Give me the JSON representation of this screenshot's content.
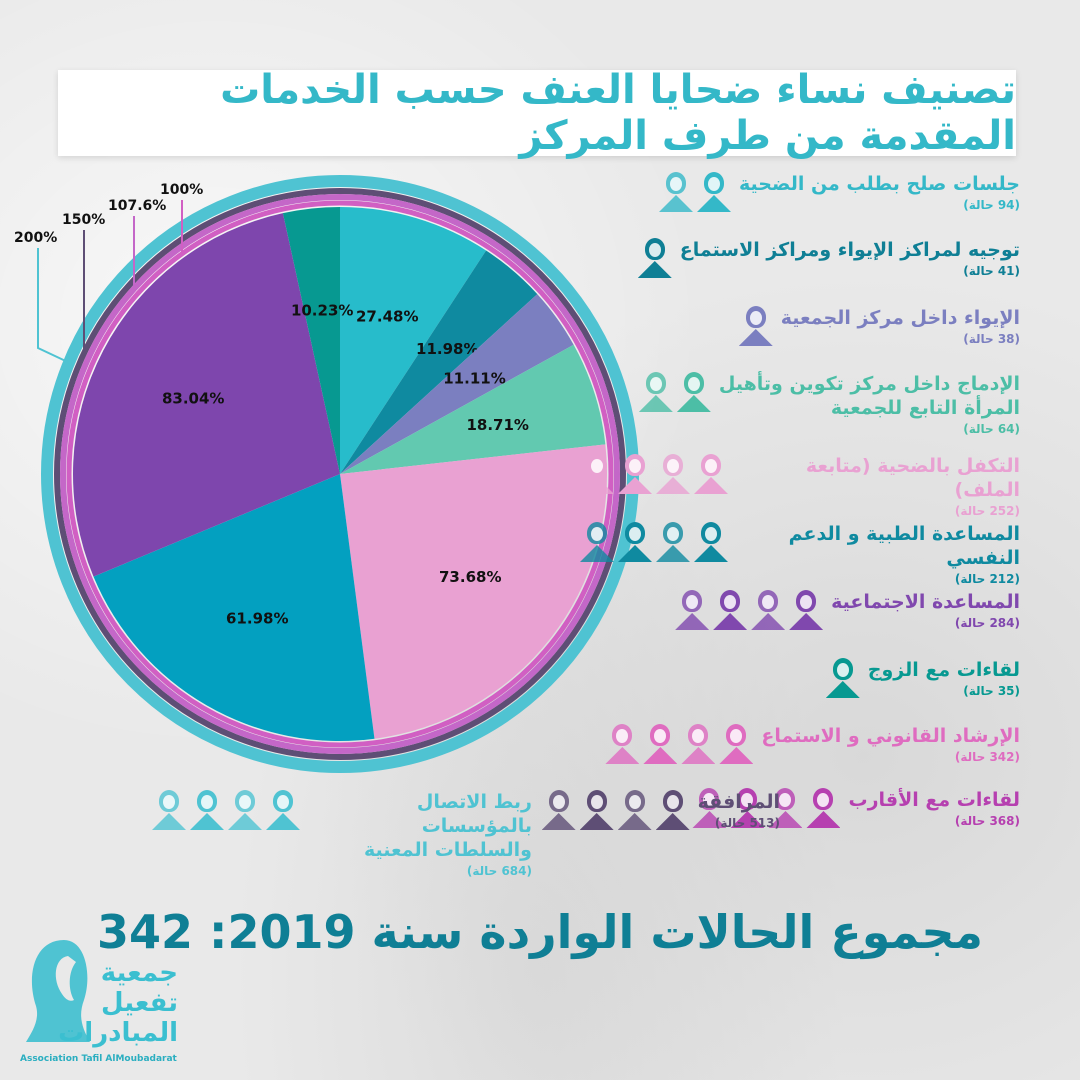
{
  "title": "تصنيف نساء ضحايا العنف حسب الخدمات المقدمة من طرف المركز",
  "total_text": "مجموع الحالات الواردة سنة 2019: 342",
  "chart_data": {
    "type": "pie",
    "title": "تصنيف نساء ضحايا العنف حسب الخدمات المقدمة من طرف المركز",
    "slices": [
      {
        "label": "27.48%",
        "value": 27.48,
        "color": "#27bccb"
      },
      {
        "label": "11.98%",
        "value": 11.98,
        "color": "#0f8aa0"
      },
      {
        "label": "11.11%",
        "value": 11.11,
        "color": "#7b7fc0"
      },
      {
        "label": "18.71%",
        "value": 18.71,
        "color": "#62c9b0"
      },
      {
        "label": "73.68%",
        "value": 73.68,
        "color": "#e9a1d2"
      },
      {
        "label": "61.98%",
        "value": 61.98,
        "color": "#03a0c0"
      },
      {
        "label": "83.04%",
        "value": 83.04,
        "color": "#7e46ad"
      },
      {
        "label": "10.23%",
        "value": 10.23,
        "color": "#079991"
      }
    ],
    "rings": [
      {
        "label": "200%",
        "color": "#4fc3d2"
      },
      {
        "label": "150%",
        "color": "#5e4e75"
      },
      {
        "label": "107.6%",
        "color": "#c467c8"
      },
      {
        "label": "100%",
        "color": "#d15fc3"
      }
    ]
  },
  "legend": [
    {
      "label": "جلسات صلح بطلب من  الضحية",
      "count": "(94 حالة)",
      "color": "#34b8c8",
      "icons": 2
    },
    {
      "label": "توجيه لمراكز الإيواء ومراكز الاستماع",
      "count": "(41 حالة)",
      "color": "#0f7f95",
      "icons": 1
    },
    {
      "label": "الإيواء داخل مركز الجمعية",
      "count": "(38 حالة)",
      "color": "#7b7fc0",
      "icons": 1
    },
    {
      "label": "الإدماج داخل مركز تكوين وتأهيل",
      "label2": "المرأة التابع للجمعية",
      "count": "(64 حالة)",
      "color": "#4cbea6",
      "icons": 2
    },
    {
      "label": "التكفل بالضحية (متابعة الملف)",
      "count": "(252 حالة)",
      "color": "#e9a1d2",
      "icons": 4
    },
    {
      "label": "المساعدة الطبية و الدعم النفسي",
      "count": "(212 حالة)",
      "color": "#0f8aa0",
      "icons": 4
    },
    {
      "label": "المساعدة الاجتماعية",
      "count": "(284 حالة)",
      "color": "#8048ae",
      "icons": 4
    },
    {
      "label": "لقاءات مع  الزوج",
      "count": "(35 حالة)",
      "color": "#079991",
      "icons": 1
    },
    {
      "label": "الإرشاد القانوني و الاستماع",
      "count": "(342 حالة)",
      "color": "#df6cc0",
      "icons": 4
    },
    {
      "label": "لقاءات مع الأقارب",
      "count": "(368 حالة)",
      "color": "#b640b0",
      "icons": 4
    }
  ],
  "bottom": [
    {
      "label": "المرافقة",
      "count": "(513 حالة)",
      "color": "#5e4e75",
      "icons": 4
    },
    {
      "label": "ربط الاتصال بالمؤسسات",
      "label2": "والسلطات المعنية",
      "count": "(684 حالة)",
      "color": "#4fc3d2",
      "icons": 4
    }
  ],
  "logo": {
    "line1": "جمعية",
    "line2": "تفعيل",
    "line3": "المبادرات",
    "latin": "Association Tafil AlMoubadarat"
  }
}
